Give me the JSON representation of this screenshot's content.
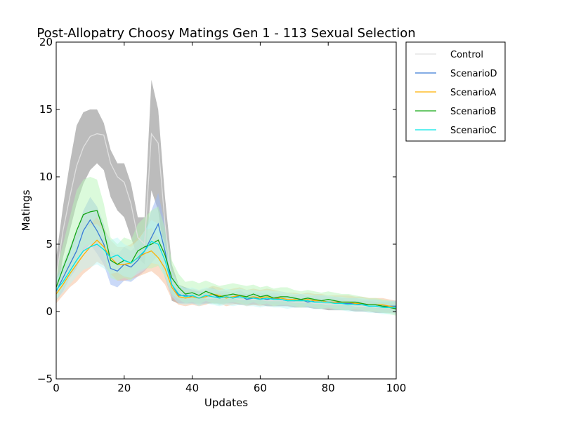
{
  "chart_data": {
    "type": "line",
    "title": "Post-Allopatry Choosy Matings Gen 1 - 113 Sexual Selection",
    "xlabel": "Updates",
    "ylabel": "Matings",
    "xlim": [
      0,
      100
    ],
    "ylim": [
      -5,
      20
    ],
    "xticks": [
      "0",
      "20",
      "40",
      "60",
      "80",
      "100"
    ],
    "yticks": [
      "−5",
      "0",
      "5",
      "10",
      "15",
      "20"
    ],
    "grid": false,
    "legend_position": "outside-right",
    "x_start": 0,
    "x_step": 2,
    "series": [
      {
        "name": "Control",
        "color": "#e0e0e0",
        "band_color": "#b5b5b5",
        "band_opacity": 0.9,
        "values": [
          2.5,
          6.0,
          8.5,
          10.8,
          12.2,
          13.0,
          13.2,
          13.1,
          11.0,
          10.0,
          9.6,
          8.0,
          5.5,
          5.0,
          13.2,
          12.5,
          6.5,
          2.0,
          1.3,
          1.2,
          1.1,
          1.1,
          1.0,
          1.0,
          1.0,
          1.0,
          1.0,
          0.9,
          0.9,
          0.9,
          0.9,
          0.8,
          0.8,
          0.8,
          0.8,
          0.7,
          0.7,
          0.7,
          0.6,
          0.6,
          0.5,
          0.5,
          0.5,
          0.5,
          0.4,
          0.4,
          0.4,
          0.3,
          0.3,
          0.3,
          0.3
        ],
        "upper": [
          4.0,
          7.8,
          11.0,
          13.8,
          14.8,
          15.0,
          15.0,
          14.0,
          12.0,
          11.0,
          11.0,
          9.5,
          7.0,
          7.0,
          17.2,
          15.0,
          8.5,
          3.5,
          2.0,
          1.8,
          1.6,
          1.5,
          1.4,
          1.4,
          1.4,
          1.3,
          1.3,
          1.3,
          1.3,
          1.2,
          1.2,
          1.2,
          1.2,
          1.1,
          1.1,
          1.0,
          1.0,
          1.0,
          1.0,
          0.9,
          0.9,
          0.9,
          0.9,
          0.8,
          0.8,
          0.8,
          0.8,
          0.7,
          0.7,
          0.7,
          0.7
        ],
        "lower": [
          1.0,
          4.0,
          6.0,
          8.0,
          9.5,
          10.5,
          11.0,
          10.5,
          8.5,
          7.5,
          7.0,
          5.5,
          4.0,
          3.5,
          9.0,
          7.5,
          4.0,
          0.8,
          0.6,
          0.6,
          0.6,
          0.6,
          0.6,
          0.6,
          0.6,
          0.6,
          0.6,
          0.5,
          0.5,
          0.5,
          0.5,
          0.4,
          0.4,
          0.4,
          0.4,
          0.3,
          0.3,
          0.3,
          0.2,
          0.2,
          0.1,
          0.1,
          0.1,
          0.1,
          0.0,
          0.0,
          0.0,
          -0.1,
          -0.1,
          -0.1,
          -0.1
        ]
      },
      {
        "name": "ScenarioD",
        "color": "#3a7bd5",
        "band_color": "#9fb9f2",
        "band_opacity": 0.55,
        "values": [
          1.5,
          2.5,
          3.5,
          4.5,
          6.0,
          6.8,
          6.0,
          5.0,
          3.2,
          3.0,
          3.5,
          3.3,
          3.8,
          4.5,
          5.5,
          6.5,
          4.5,
          2.0,
          1.2,
          1.2,
          1.1,
          1.0,
          1.1,
          1.3,
          1.0,
          1.1,
          1.0,
          1.2,
          0.9,
          1.0,
          1.0,
          0.9,
          1.0,
          0.9,
          0.8,
          0.8,
          0.9,
          0.7,
          0.8,
          0.8,
          0.7,
          0.7,
          0.6,
          0.6,
          0.6,
          0.5,
          0.5,
          0.5,
          0.4,
          0.4,
          0.4
        ],
        "upper": [
          2.5,
          3.5,
          4.8,
          6.0,
          7.5,
          8.5,
          7.8,
          6.5,
          4.5,
          4.2,
          4.8,
          4.5,
          5.0,
          6.0,
          7.5,
          8.8,
          6.5,
          3.0,
          1.8,
          1.8,
          1.6,
          1.5,
          1.6,
          1.8,
          1.5,
          1.5,
          1.4,
          1.6,
          1.3,
          1.4,
          1.4,
          1.3,
          1.4,
          1.3,
          1.2,
          1.2,
          1.3,
          1.1,
          1.2,
          1.2,
          1.1,
          1.1,
          1.0,
          1.0,
          1.0,
          0.9,
          0.9,
          0.9,
          0.8,
          0.8,
          0.8
        ],
        "lower": [
          0.8,
          1.5,
          2.5,
          3.2,
          4.5,
          5.0,
          4.3,
          3.5,
          2.0,
          1.8,
          2.3,
          2.2,
          2.6,
          3.0,
          3.6,
          4.2,
          2.5,
          1.0,
          0.6,
          0.6,
          0.6,
          0.5,
          0.6,
          0.8,
          0.5,
          0.6,
          0.6,
          0.8,
          0.5,
          0.6,
          0.6,
          0.5,
          0.6,
          0.5,
          0.4,
          0.4,
          0.5,
          0.3,
          0.4,
          0.4,
          0.3,
          0.3,
          0.2,
          0.2,
          0.2,
          0.1,
          0.1,
          0.1,
          0.0,
          0.0,
          0.0
        ]
      },
      {
        "name": "ScenarioA",
        "color": "#ffb000",
        "band_color": "#f4b48a",
        "band_opacity": 0.45,
        "values": [
          1.3,
          2.0,
          2.8,
          3.5,
          4.2,
          4.8,
          5.3,
          4.8,
          4.0,
          3.5,
          3.5,
          3.6,
          4.0,
          4.3,
          4.5,
          4.0,
          3.2,
          1.8,
          1.1,
          1.0,
          1.1,
          1.0,
          1.1,
          1.3,
          1.2,
          1.0,
          1.1,
          1.2,
          1.0,
          1.1,
          1.0,
          1.1,
          1.0,
          1.0,
          0.9,
          0.9,
          0.8,
          0.9,
          0.8,
          0.8,
          0.7,
          0.7,
          0.7,
          0.7,
          0.6,
          0.6,
          0.5,
          0.5,
          0.5,
          0.4,
          0.3
        ],
        "upper": [
          2.2,
          3.0,
          4.0,
          5.0,
          5.8,
          6.5,
          7.0,
          6.2,
          5.3,
          4.8,
          4.8,
          5.0,
          5.5,
          6.0,
          6.2,
          5.5,
          4.5,
          2.8,
          1.8,
          1.6,
          1.7,
          1.6,
          1.7,
          1.9,
          1.8,
          1.6,
          1.7,
          1.8,
          1.6,
          1.7,
          1.6,
          1.7,
          1.6,
          1.5,
          1.4,
          1.4,
          1.3,
          1.4,
          1.3,
          1.3,
          1.2,
          1.2,
          1.2,
          1.2,
          1.1,
          1.1,
          1.0,
          1.0,
          1.0,
          0.9,
          0.8
        ],
        "lower": [
          0.6,
          1.2,
          1.8,
          2.2,
          2.8,
          3.2,
          3.7,
          3.4,
          2.8,
          2.3,
          2.3,
          2.4,
          2.6,
          2.8,
          3.0,
          2.6,
          2.0,
          0.9,
          0.5,
          0.4,
          0.5,
          0.4,
          0.5,
          0.7,
          0.6,
          0.4,
          0.5,
          0.6,
          0.4,
          0.5,
          0.4,
          0.5,
          0.4,
          0.5,
          0.4,
          0.4,
          0.3,
          0.4,
          0.3,
          0.3,
          0.2,
          0.2,
          0.2,
          0.2,
          0.1,
          0.1,
          0.0,
          0.0,
          0.0,
          -0.1,
          -0.2
        ]
      },
      {
        "name": "ScenarioB",
        "color": "#14a614",
        "band_color": "#b7f5b7",
        "band_opacity": 0.5,
        "values": [
          1.8,
          3.2,
          4.5,
          6.0,
          7.2,
          7.4,
          7.5,
          6.0,
          3.8,
          3.5,
          3.8,
          3.6,
          4.5,
          4.8,
          5.0,
          5.3,
          4.2,
          2.5,
          1.8,
          1.3,
          1.4,
          1.2,
          1.5,
          1.3,
          1.1,
          1.2,
          1.3,
          1.2,
          1.1,
          1.3,
          1.1,
          1.2,
          1.0,
          1.1,
          1.1,
          1.0,
          0.9,
          1.0,
          0.9,
          0.8,
          0.9,
          0.8,
          0.7,
          0.7,
          0.7,
          0.6,
          0.5,
          0.5,
          0.4,
          0.3,
          0.2
        ],
        "upper": [
          3.0,
          5.0,
          7.0,
          9.0,
          9.8,
          10.0,
          9.8,
          8.0,
          5.5,
          5.0,
          5.5,
          5.3,
          6.5,
          7.0,
          7.5,
          7.8,
          6.2,
          3.8,
          2.8,
          2.2,
          2.3,
          2.1,
          2.3,
          2.1,
          1.9,
          2.0,
          2.1,
          2.0,
          1.9,
          2.0,
          1.8,
          1.9,
          1.7,
          1.8,
          1.8,
          1.6,
          1.5,
          1.6,
          1.5,
          1.4,
          1.5,
          1.4,
          1.3,
          1.3,
          1.2,
          1.1,
          1.0,
          1.0,
          0.9,
          0.8,
          0.7
        ],
        "lower": [
          0.8,
          1.8,
          2.5,
          3.5,
          4.8,
          5.0,
          5.2,
          4.2,
          2.5,
          2.3,
          2.5,
          2.3,
          3.0,
          3.2,
          3.2,
          3.4,
          2.6,
          1.3,
          0.9,
          0.6,
          0.7,
          0.5,
          0.8,
          0.6,
          0.5,
          0.6,
          0.7,
          0.6,
          0.5,
          0.7,
          0.5,
          0.6,
          0.4,
          0.5,
          0.5,
          0.4,
          0.3,
          0.4,
          0.3,
          0.2,
          0.3,
          0.2,
          0.1,
          0.1,
          0.2,
          0.1,
          0.0,
          0.0,
          -0.1,
          -0.2,
          -0.3
        ]
      },
      {
        "name": "ScenarioC",
        "color": "#00e5e5",
        "band_color": "#b8f7f7",
        "band_opacity": 0.45,
        "values": [
          1.6,
          2.2,
          3.0,
          3.8,
          4.5,
          4.8,
          5.0,
          4.6,
          4.0,
          4.2,
          3.8,
          3.6,
          4.0,
          4.5,
          5.2,
          5.0,
          3.8,
          2.0,
          1.3,
          1.1,
          1.2,
          1.0,
          1.2,
          1.1,
          1.0,
          1.1,
          1.0,
          1.1,
          1.0,
          1.0,
          0.9,
          1.0,
          0.9,
          0.9,
          0.8,
          0.8,
          0.8,
          0.8,
          0.7,
          0.7,
          0.7,
          0.6,
          0.6,
          0.5,
          0.5,
          0.5,
          0.4,
          0.4,
          0.3,
          0.3,
          0.3
        ],
        "upper": [
          2.4,
          3.2,
          4.2,
          5.2,
          6.0,
          6.4,
          6.5,
          6.0,
          5.3,
          5.5,
          5.0,
          4.8,
          5.3,
          6.0,
          6.8,
          6.5,
          5.0,
          3.0,
          2.0,
          1.7,
          1.8,
          1.6,
          1.8,
          1.7,
          1.6,
          1.7,
          1.6,
          1.7,
          1.6,
          1.6,
          1.5,
          1.6,
          1.5,
          1.5,
          1.4,
          1.3,
          1.3,
          1.3,
          1.2,
          1.2,
          1.2,
          1.1,
          1.1,
          1.0,
          1.0,
          1.0,
          0.9,
          0.9,
          0.8,
          0.8,
          0.8
        ],
        "lower": [
          0.9,
          1.4,
          2.0,
          2.6,
          3.1,
          3.3,
          3.5,
          3.2,
          2.8,
          2.9,
          2.6,
          2.5,
          2.8,
          3.1,
          3.6,
          3.5,
          2.6,
          1.1,
          0.6,
          0.5,
          0.6,
          0.4,
          0.6,
          0.5,
          0.4,
          0.5,
          0.4,
          0.5,
          0.4,
          0.4,
          0.3,
          0.4,
          0.3,
          0.3,
          0.2,
          0.3,
          0.3,
          0.3,
          0.2,
          0.2,
          0.2,
          0.1,
          0.1,
          0.0,
          0.0,
          0.0,
          -0.1,
          -0.1,
          -0.2,
          -0.2,
          -0.2
        ]
      }
    ]
  }
}
